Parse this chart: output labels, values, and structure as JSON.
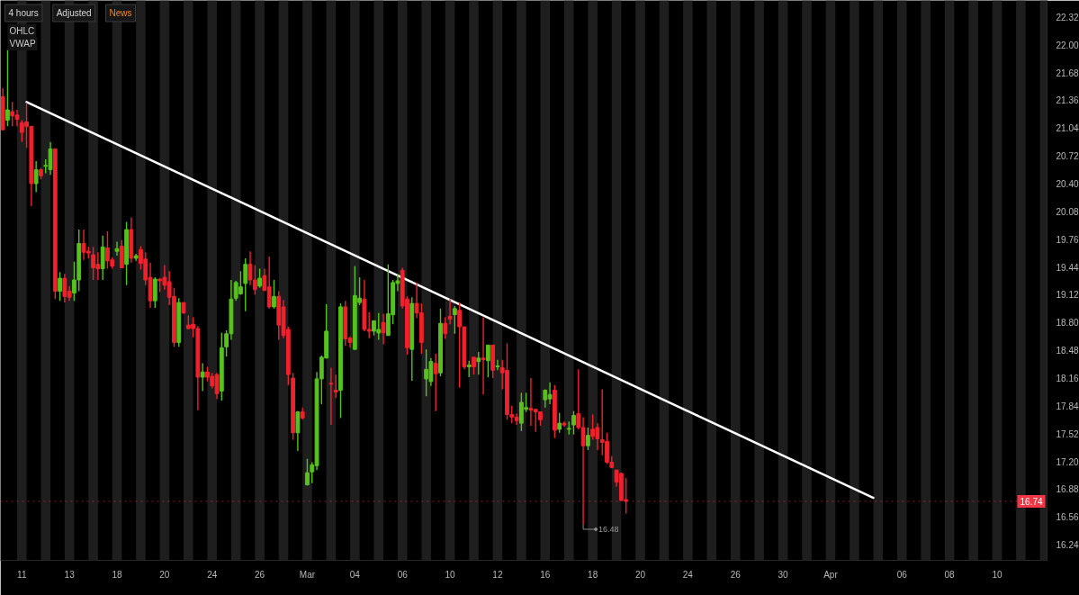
{
  "chart_data": {
    "type": "candlestick",
    "categories": [
      null,
      null,
      null,
      null,
      "11",
      null,
      null,
      null,
      null,
      null,
      null,
      null,
      null,
      null,
      "13",
      null,
      null,
      null,
      null,
      null,
      null,
      null,
      null,
      null,
      "18",
      null,
      null,
      null,
      null,
      null,
      null,
      null,
      null,
      null,
      "20",
      null,
      null,
      null,
      null,
      null,
      null,
      null,
      null,
      null,
      "24",
      null,
      null,
      null,
      null,
      null,
      null,
      null,
      null,
      null,
      "26",
      null,
      null,
      null,
      null,
      null,
      null,
      null,
      null,
      null,
      "Mar",
      null,
      null,
      null,
      null,
      null,
      null,
      null,
      null,
      null,
      "04",
      null,
      null,
      null,
      null,
      null,
      null,
      null,
      null,
      null,
      "06",
      null,
      null,
      null,
      null,
      null,
      null,
      null,
      null,
      null,
      "10",
      null,
      null,
      null,
      null,
      null,
      null,
      null,
      null,
      null,
      "12",
      null,
      null,
      null,
      null,
      null,
      null,
      null,
      null,
      null,
      "16",
      null,
      null,
      null,
      null,
      null,
      null,
      null,
      null,
      null,
      "18",
      null,
      null,
      null,
      null,
      null,
      null,
      null,
      null,
      null,
      "20",
      null,
      null,
      null,
      null,
      null,
      null,
      null,
      null,
      null,
      "24",
      null,
      null,
      null,
      null,
      null,
      null,
      null,
      null,
      null,
      "26",
      null,
      null,
      null,
      null,
      null,
      null,
      null,
      null,
      null,
      "30",
      null,
      null,
      null,
      null,
      null,
      null,
      null,
      null,
      null,
      "Apr",
      null,
      null,
      null,
      null,
      null,
      null,
      null,
      null,
      null,
      null,
      null,
      null,
      null,
      null,
      "06",
      null,
      null,
      null,
      null,
      null,
      null,
      null,
      null,
      null,
      "08",
      null,
      null,
      null,
      null,
      null,
      null,
      null,
      null,
      null,
      "10",
      null,
      null,
      null,
      null,
      null,
      null,
      null,
      null,
      null,
      null
    ],
    "ohlc": [
      [
        21.4,
        21.5,
        21.02,
        21.02
      ],
      [
        21.13,
        21.94,
        21.06,
        21.25
      ],
      [
        21.23,
        21.34,
        21.06,
        21.18
      ],
      [
        21.19,
        21.25,
        21.06,
        21.14
      ],
      [
        21.1,
        21.13,
        20.88,
        20.99
      ],
      [
        21.11,
        21.33,
        20.81,
        21.06
      ],
      [
        21.06,
        21.06,
        20.14,
        20.4
      ],
      [
        20.4,
        20.66,
        20.3,
        20.56
      ],
      [
        20.56,
        20.58,
        20.45,
        20.49
      ],
      [
        20.6,
        20.68,
        20.52,
        20.61
      ],
      [
        20.56,
        20.88,
        20.5,
        20.8
      ],
      [
        20.8,
        20.8,
        19.07,
        19.16
      ],
      [
        19.16,
        19.38,
        19.05,
        19.31
      ],
      [
        19.31,
        19.36,
        19.03,
        19.1
      ],
      [
        19.16,
        19.22,
        19.05,
        19.09
      ],
      [
        19.14,
        19.5,
        19.05,
        19.29
      ],
      [
        19.29,
        19.87,
        19.16,
        19.71
      ],
      [
        19.71,
        19.87,
        19.52,
        19.61
      ],
      [
        19.62,
        19.67,
        19.54,
        19.6
      ],
      [
        19.58,
        19.67,
        19.29,
        19.43
      ],
      [
        19.47,
        19.61,
        19.29,
        19.42
      ],
      [
        19.42,
        19.8,
        19.29,
        19.67
      ],
      [
        19.66,
        19.85,
        19.42,
        19.51
      ],
      [
        19.52,
        19.55,
        19.42,
        19.45
      ],
      [
        19.62,
        19.73,
        19.57,
        19.65
      ],
      [
        19.68,
        19.75,
        19.43,
        19.43
      ],
      [
        19.47,
        19.96,
        19.23,
        19.87
      ],
      [
        19.87,
        20.01,
        19.49,
        19.54
      ],
      [
        19.54,
        19.59,
        19.51,
        19.57
      ],
      [
        19.64,
        19.68,
        19.41,
        19.48
      ],
      [
        19.53,
        19.61,
        19.23,
        19.29
      ],
      [
        19.32,
        19.49,
        18.97,
        19.05
      ],
      [
        19.05,
        19.32,
        18.97,
        19.3
      ],
      [
        19.3,
        19.31,
        19.15,
        19.28
      ],
      [
        19.32,
        19.46,
        19.18,
        19.23
      ],
      [
        19.27,
        19.39,
        19.0,
        19.09
      ],
      [
        19.1,
        19.2,
        18.52,
        18.57
      ],
      [
        18.57,
        19.08,
        18.52,
        19.03
      ],
      [
        19.03,
        19.03,
        18.9,
        18.91
      ],
      [
        18.77,
        18.88,
        18.72,
        18.73
      ],
      [
        18.78,
        18.86,
        18.63,
        18.73
      ],
      [
        18.73,
        18.76,
        17.79,
        18.17
      ],
      [
        18.17,
        18.33,
        18.01,
        18.23
      ],
      [
        18.23,
        18.29,
        18.12,
        18.17
      ],
      [
        18.18,
        18.22,
        18.04,
        18.07
      ],
      [
        18.2,
        18.22,
        17.92,
        17.98
      ],
      [
        18.01,
        18.68,
        17.9,
        18.51
      ],
      [
        18.52,
        18.71,
        18.41,
        18.67
      ],
      [
        18.67,
        19.29,
        18.6,
        19.07
      ],
      [
        19.08,
        19.28,
        19.05,
        19.26
      ],
      [
        19.13,
        19.39,
        19.12,
        19.21
      ],
      [
        19.25,
        19.54,
        18.93,
        19.47
      ],
      [
        19.47,
        19.62,
        19.23,
        19.29
      ],
      [
        19.29,
        19.46,
        19.12,
        19.18
      ],
      [
        19.22,
        19.42,
        19.2,
        19.31
      ],
      [
        19.34,
        19.42,
        19.16,
        19.17
      ],
      [
        19.21,
        19.56,
        18.96,
        18.98
      ],
      [
        18.98,
        19.29,
        18.96,
        19.1
      ],
      [
        19.1,
        19.16,
        18.6,
        18.77
      ],
      [
        18.98,
        19.06,
        18.62,
        18.65
      ],
      [
        18.72,
        18.75,
        18.08,
        18.2
      ],
      [
        18.16,
        18.22,
        17.45,
        17.53
      ],
      [
        17.53,
        17.78,
        17.32,
        17.77
      ],
      [
        17.77,
        17.82,
        17.68,
        17.7
      ],
      [
        16.93,
        17.23,
        16.92,
        17.07
      ],
      [
        17.08,
        17.19,
        16.95,
        17.16
      ],
      [
        17.15,
        18.23,
        17.1,
        18.15
      ],
      [
        18.15,
        18.42,
        17.86,
        18.4
      ],
      [
        18.39,
        19.01,
        18.39,
        18.7
      ],
      [
        18.1,
        18.28,
        17.62,
        18.09
      ],
      [
        18.02,
        18.2,
        17.93,
        18.0
      ],
      [
        18.02,
        19.02,
        17.7,
        18.98
      ],
      [
        18.98,
        19.05,
        18.53,
        18.61
      ],
      [
        18.62,
        18.64,
        18.51,
        18.57
      ],
      [
        18.49,
        19.45,
        18.49,
        19.11
      ],
      [
        19.03,
        19.32,
        19.0,
        19.08
      ],
      [
        19.07,
        19.29,
        18.7,
        18.72
      ],
      [
        18.72,
        18.92,
        18.62,
        18.7
      ],
      [
        18.7,
        18.82,
        18.65,
        18.82
      ],
      [
        18.68,
        18.91,
        18.6,
        18.72
      ],
      [
        18.8,
        18.9,
        18.55,
        18.68
      ],
      [
        18.65,
        19.47,
        18.65,
        18.9
      ],
      [
        18.89,
        19.29,
        18.78,
        19.26
      ],
      [
        19.25,
        19.35,
        19.16,
        19.28
      ],
      [
        19.4,
        19.43,
        18.96,
        18.99
      ],
      [
        19.07,
        19.1,
        18.43,
        18.51
      ],
      [
        18.49,
        19.09,
        18.13,
        19.02
      ],
      [
        19.02,
        19.26,
        18.85,
        18.91
      ],
      [
        18.91,
        19.02,
        18.44,
        18.57
      ],
      [
        18.15,
        18.49,
        17.95,
        18.26
      ],
      [
        18.12,
        18.39,
        18.07,
        18.35
      ],
      [
        18.33,
        18.44,
        17.78,
        18.21
      ],
      [
        18.22,
        18.96,
        18.18,
        18.79
      ],
      [
        18.79,
        18.86,
        18.61,
        18.67
      ],
      [
        18.87,
        19.07,
        18.78,
        18.84
      ],
      [
        18.89,
        18.99,
        18.67,
        18.96
      ],
      [
        18.94,
        19.03,
        18.05,
        18.75
      ],
      [
        18.75,
        18.75,
        18.26,
        18.29
      ],
      [
        18.29,
        18.36,
        18.17,
        18.31
      ],
      [
        18.4,
        18.4,
        18.2,
        18.29
      ],
      [
        18.35,
        18.46,
        18.2,
        18.39
      ],
      [
        18.39,
        18.86,
        17.97,
        18.37
      ],
      [
        18.36,
        18.54,
        18.17,
        18.54
      ],
      [
        18.54,
        18.54,
        18.16,
        18.25
      ],
      [
        18.29,
        18.37,
        18.25,
        18.3
      ],
      [
        18.28,
        18.37,
        18.03,
        18.22
      ],
      [
        18.25,
        18.56,
        17.68,
        17.74
      ],
      [
        17.74,
        17.84,
        17.64,
        17.71
      ],
      [
        17.71,
        17.75,
        17.62,
        17.67
      ],
      [
        17.64,
        17.99,
        17.55,
        17.88
      ],
      [
        17.8,
        17.99,
        17.77,
        17.82
      ],
      [
        17.81,
        18.16,
        17.61,
        17.79
      ],
      [
        17.8,
        17.8,
        17.54,
        17.77
      ],
      [
        17.77,
        17.77,
        17.61,
        17.68
      ],
      [
        17.91,
        18.03,
        17.82,
        18.02
      ],
      [
        17.92,
        18.11,
        17.86,
        17.97
      ],
      [
        18.02,
        18.08,
        17.47,
        17.56
      ],
      [
        17.57,
        17.76,
        17.53,
        17.64
      ],
      [
        17.64,
        17.66,
        17.6,
        17.62
      ],
      [
        17.57,
        17.66,
        17.51,
        17.58
      ],
      [
        17.62,
        17.78,
        17.51,
        17.73
      ],
      [
        17.75,
        18.26,
        17.57,
        17.59
      ],
      [
        17.59,
        17.71,
        16.48,
        17.38
      ],
      [
        17.38,
        17.59,
        17.33,
        17.5
      ],
      [
        17.57,
        17.74,
        17.45,
        17.49
      ],
      [
        17.59,
        17.64,
        17.33,
        17.46
      ],
      [
        17.45,
        18.03,
        17.27,
        17.42
      ],
      [
        17.43,
        17.53,
        17.17,
        17.19
      ],
      [
        17.19,
        17.26,
        17.12,
        17.13
      ],
      [
        17.1,
        17.1,
        16.91,
        16.96
      ],
      [
        17.06,
        17.07,
        16.75,
        16.75
      ],
      [
        16.76,
        17.01,
        16.6,
        16.74
      ],
      null,
      null,
      null,
      null,
      null,
      null,
      null,
      null,
      null,
      null,
      null,
      null,
      null,
      null,
      null,
      null,
      null,
      null,
      null,
      null,
      null,
      null,
      null,
      null,
      null,
      null,
      null,
      null,
      null,
      null,
      null,
      null,
      null,
      null,
      null,
      null,
      null,
      null,
      null,
      null,
      null,
      null,
      null,
      null,
      null,
      null,
      null,
      null,
      null,
      null,
      null,
      null,
      null,
      null,
      null,
      null,
      null,
      null,
      null,
      null,
      null,
      null,
      null,
      null,
      null,
      null,
      null,
      null,
      null,
      null,
      null,
      null,
      null,
      null,
      null,
      null,
      null,
      null,
      null,
      null,
      null,
      null,
      null,
      null,
      null,
      null,
      null,
      null
    ],
    "colors": [
      "#f0212d",
      "#56c21d",
      "#f0212d",
      "#f0212d",
      "#f0212d",
      "#f0212d",
      "#f0212d",
      "#56c21d",
      "#f0212d",
      "#56c21d",
      "#56c21d",
      "#f0212d",
      "#56c21d",
      "#f0212d",
      "#f0212d",
      "#56c21d",
      "#56c21d",
      "#f0212d",
      "#f0212d",
      "#f0212d",
      "#f0212d",
      "#56c21d",
      "#f0212d",
      "#f0212d",
      "#56c21d",
      "#f0212d",
      "#56c21d",
      "#f0212d",
      "#56c21d",
      "#f0212d",
      "#f0212d",
      "#f0212d",
      "#56c21d",
      "#f0212d",
      "#f0212d",
      "#f0212d",
      "#f0212d",
      "#56c21d",
      "#f0212d",
      "#f0212d",
      "#f0212d",
      "#f0212d",
      "#56c21d",
      "#f0212d",
      "#f0212d",
      "#f0212d",
      "#56c21d",
      "#56c21d",
      "#56c21d",
      "#56c21d",
      "#56c21d",
      "#56c21d",
      "#f0212d",
      "#f0212d",
      "#56c21d",
      "#f0212d",
      "#f0212d",
      "#56c21d",
      "#f0212d",
      "#f0212d",
      "#f0212d",
      "#f0212d",
      "#56c21d",
      "#f0212d",
      "#56c21d",
      "#56c21d",
      "#56c21d",
      "#56c21d",
      "#56c21d",
      "#f0212d",
      "#f0212d",
      "#56c21d",
      "#f0212d",
      "#f0212d",
      "#56c21d",
      "#56c21d",
      "#f0212d",
      "#f0212d",
      "#56c21d",
      "#56c21d",
      "#f0212d",
      "#56c21d",
      "#56c21d",
      "#56c21d",
      "#f0212d",
      "#f0212d",
      "#56c21d",
      "#f0212d",
      "#f0212d",
      "#56c21d",
      "#56c21d",
      "#f0212d",
      "#56c21d",
      "#f0212d",
      "#f0212d",
      "#56c21d",
      "#f0212d",
      "#f0212d",
      "#56c21d",
      "#f0212d",
      "#56c21d",
      "#f0212d",
      "#56c21d",
      "#f0212d",
      "#56c21d",
      "#f0212d",
      "#f0212d",
      "#f0212d",
      "#f0212d",
      "#56c21d",
      "#56c21d",
      "#f0212d",
      "#f0212d",
      "#f0212d",
      "#56c21d",
      "#56c21d",
      "#f0212d",
      "#56c21d",
      "#f0212d",
      "#56c21d",
      "#56c21d",
      "#f0212d",
      "#f0212d",
      "#56c21d",
      "#f0212d",
      "#f0212d",
      "#f0212d",
      "#f0212d",
      "#f0212d",
      "#f0212d",
      "#f0212d",
      "#f0212d",
      null,
      null,
      null,
      null,
      null,
      null,
      null,
      null,
      null,
      null,
      null,
      null,
      null,
      null,
      null,
      null,
      null,
      null,
      null,
      null,
      null,
      null,
      null,
      null,
      null,
      null,
      null,
      null,
      null,
      null,
      null,
      null,
      null,
      null,
      null,
      null,
      null,
      null,
      null,
      null,
      null,
      null,
      null,
      null,
      null,
      null,
      null,
      null,
      null,
      null,
      null,
      null,
      null,
      null,
      null,
      null,
      null,
      null,
      null,
      null,
      null,
      null,
      null,
      null,
      null,
      null,
      null,
      null,
      null,
      null,
      null,
      null,
      null,
      null,
      null,
      null,
      null,
      null,
      null,
      null,
      null,
      null,
      null,
      null,
      null,
      null,
      null,
      null
    ],
    "ylim": [
      16.06,
      22.51
    ],
    "yticks": [
      16.24,
      16.56,
      16.88,
      {
        "value": 17.2,
        "label": "17.20"
      },
      17.52,
      17.84,
      18.16,
      18.48,
      {
        "value": 18.8,
        "label": "18.80"
      },
      19.12,
      19.44,
      19.76,
      20.08,
      {
        "value": 20.4,
        "label": "20.40"
      },
      20.72,
      21.04,
      21.36,
      21.68,
      {
        "value": 22.0,
        "label": "22.00"
      },
      22.32
    ],
    "series": [
      {
        "type": "line",
        "color": "#ffffff",
        "values": [
          null,
          null,
          null,
          null,
          null,
          21.34,
          null,
          null,
          null,
          null,
          null,
          null,
          null,
          null,
          null,
          null,
          null,
          null,
          null,
          null,
          null,
          null,
          null,
          null,
          null,
          null,
          null,
          null,
          null,
          null,
          null,
          null,
          null,
          null,
          null,
          null,
          null,
          null,
          null,
          null,
          null,
          null,
          null,
          null,
          null,
          null,
          null,
          null,
          null,
          null,
          null,
          null,
          null,
          null,
          null,
          null,
          null,
          null,
          null,
          null,
          null,
          null,
          null,
          null,
          null,
          null,
          null,
          null,
          null,
          null,
          null,
          null,
          null,
          null,
          null,
          null,
          null,
          null,
          null,
          null,
          null,
          null,
          null,
          null,
          null,
          null,
          null,
          null,
          null,
          null,
          null,
          null,
          null,
          null,
          null,
          null,
          null,
          null,
          null,
          null,
          null,
          null,
          null,
          null,
          null,
          null,
          null,
          null,
          null,
          null,
          null,
          null,
          null,
          null,
          null,
          null,
          null,
          null,
          null,
          null,
          null,
          null,
          null,
          null,
          null,
          null,
          null,
          null,
          null,
          null,
          null,
          null,
          null,
          null,
          null,
          null,
          null,
          null,
          null,
          null,
          null,
          null,
          null,
          null,
          null,
          null,
          null,
          null,
          null,
          null,
          null,
          null,
          null,
          null,
          null,
          null,
          null,
          null,
          null,
          null,
          null,
          null,
          null,
          null,
          null,
          null,
          null,
          null,
          null,
          null,
          null,
          null,
          null,
          null,
          null,
          null,
          null,
          null,
          null,
          null,
          null,
          null,
          null,
          16.78,
          null,
          null,
          null,
          null,
          null,
          null,
          null,
          null,
          null,
          null,
          null,
          null,
          null,
          null,
          null,
          null,
          null,
          null,
          null,
          null,
          null,
          null,
          null,
          null,
          null,
          null,
          null,
          null,
          null,
          null,
          null,
          null,
          null,
          null,
          null,
          null
        ]
      }
    ],
    "ref_lines": [
      {
        "axis": "y",
        "value": 16.74,
        "label": "16.74",
        "color": "#f23645",
        "line_style": "dotted"
      }
    ],
    "annotations": [
      "4 hours",
      "Adjusted",
      "News",
      "OHLC",
      "VWAP",
      "16.48"
    ]
  }
}
